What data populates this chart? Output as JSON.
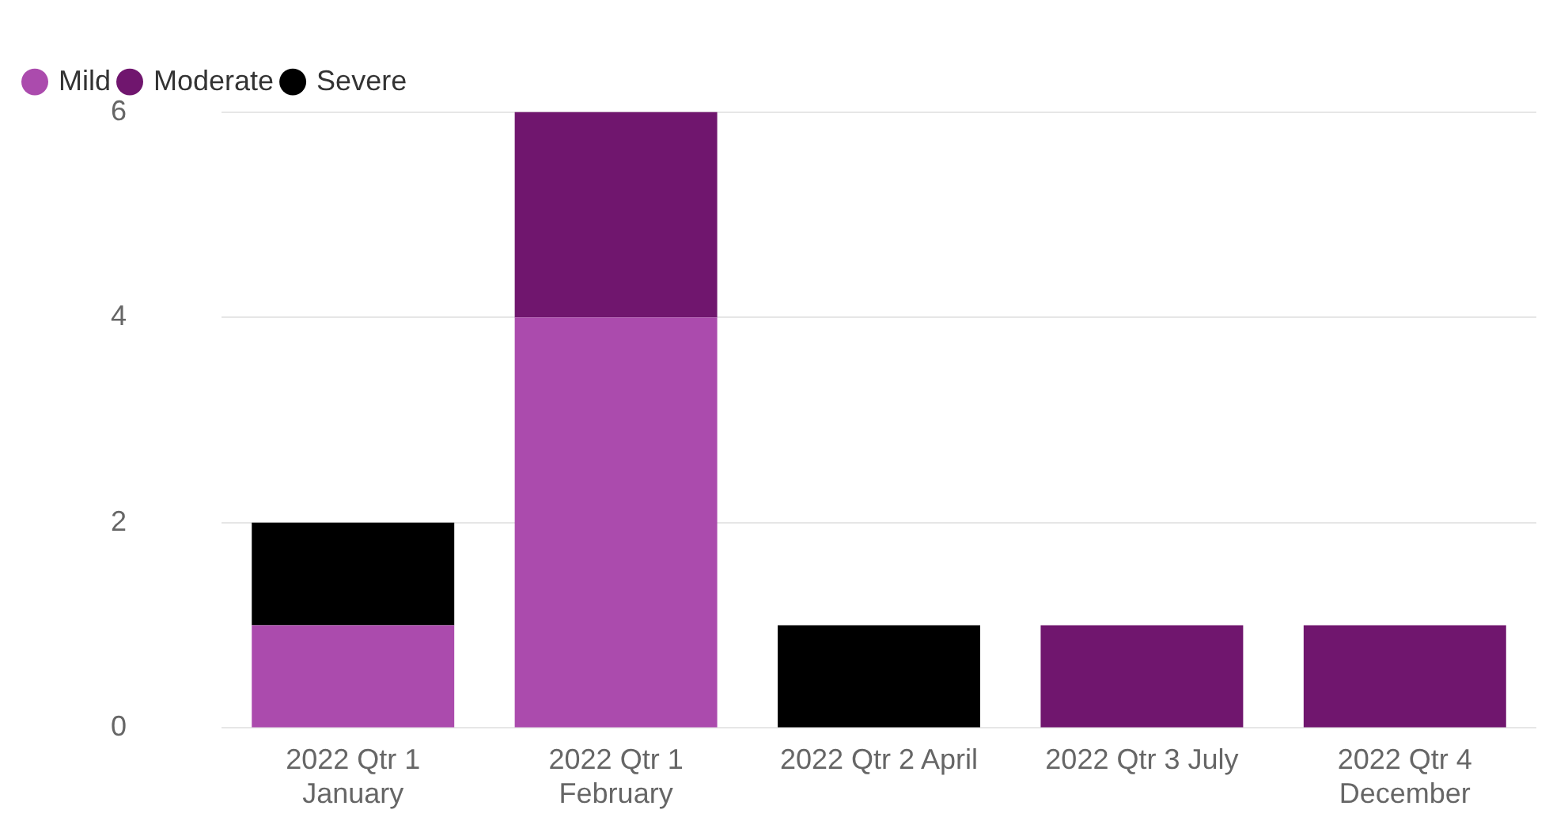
{
  "chart_data": {
    "type": "bar",
    "stacked": true,
    "categories": [
      "2022 Qtr 1 January",
      "2022 Qtr 1 February",
      "2022 Qtr 2 April",
      "2022 Qtr 3 July",
      "2022 Qtr 4 December"
    ],
    "series": [
      {
        "name": "Mild",
        "color": "#ab4bad",
        "values": [
          1,
          4,
          null,
          null,
          null
        ]
      },
      {
        "name": "Moderate",
        "color": "#70166e",
        "values": [
          null,
          2,
          null,
          1,
          1
        ]
      },
      {
        "name": "Severe",
        "color": "#000000",
        "values": [
          1,
          null,
          1,
          null,
          null
        ]
      }
    ],
    "ylim": [
      0,
      6
    ],
    "yticks": [
      0,
      2,
      4,
      6
    ],
    "grid": "y",
    "legend": "top left",
    "marker": "circle"
  }
}
